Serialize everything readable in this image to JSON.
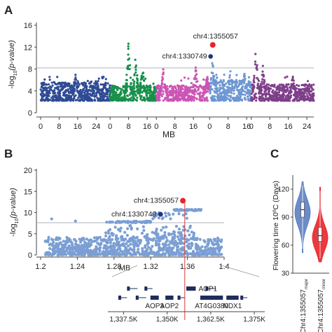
{
  "panels": {
    "a": {
      "letter": "A"
    },
    "b": {
      "letter": "B"
    },
    "c": {
      "letter": "C"
    }
  },
  "chart_data": [
    {
      "panel": "A",
      "type": "scatter",
      "subtype": "manhattan",
      "title": "",
      "xlabel": "MB",
      "ylabel_prefix": "-log",
      "ylabel_sub": "10",
      "ylabel_suffix": "(p-value)",
      "ylim": [
        0,
        16
      ],
      "yticks": [
        0,
        4,
        8,
        12,
        16
      ],
      "threshold": 8.2,
      "grid": false,
      "chromosomes": [
        {
          "color": "#2e4a94",
          "length": 30,
          "ticks": [
            0,
            8,
            16,
            24
          ],
          "base_max": 5.6,
          "peaks": [
            {
              "pos": 15,
              "height": 7.2
            },
            {
              "pos": 24,
              "height": 6.3
            }
          ]
        },
        {
          "color": "#17904a",
          "length": 20,
          "ticks": [
            0,
            8,
            16
          ],
          "base_max": 5.0,
          "peaks": [
            {
              "pos": 8,
              "height": 13.5
            },
            {
              "pos": 11,
              "height": 11.0
            },
            {
              "pos": 14,
              "height": 9.0
            }
          ]
        },
        {
          "color": "#cc55b4",
          "length": 23,
          "ticks": [
            0,
            8,
            16
          ],
          "base_max": 5.0,
          "peaks": [
            {
              "pos": 3,
              "height": 8.2
            },
            {
              "pos": 17,
              "height": 9.5
            },
            {
              "pos": 22,
              "height": 7.0
            }
          ]
        },
        {
          "color": "#6d97d2",
          "length": 18,
          "ticks": [
            0,
            8,
            16
          ],
          "base_max": 6.0,
          "peaks": [
            {
              "pos": 1.3,
              "height": 10.2
            },
            {
              "pos": 9,
              "height": 8.0
            },
            {
              "pos": 15,
              "height": 7.5
            }
          ]
        },
        {
          "color": "#7e3f8a",
          "length": 27,
          "ticks": [
            0,
            8,
            16,
            24
          ],
          "base_max": 5.2,
          "peaks": [
            {
              "pos": 2,
              "height": 12.5
            },
            {
              "pos": 5,
              "height": 9.0
            },
            {
              "pos": 18,
              "height": 7.0
            }
          ]
        }
      ],
      "highlights": [
        {
          "label": "chr4:1355057",
          "chrom": 4,
          "pos": 1.355057,
          "y": 12.4,
          "color": "#e8242a"
        },
        {
          "label": "chr4:1330749",
          "chrom": 4,
          "pos": 1.330749,
          "y": 10.3,
          "color": "#1f3578"
        }
      ]
    },
    {
      "panel": "B",
      "type": "scatter",
      "subtype": "regional",
      "title": "",
      "xlabel": "MB",
      "ylabel_prefix": "-log",
      "ylabel_sub": "10",
      "ylabel_suffix": "(p-value)",
      "xlim": [
        1.2,
        1.4
      ],
      "xticks": [
        "1.2",
        "1.24",
        "1.28",
        "1.32",
        "1.36",
        "1.4"
      ],
      "ylim": [
        0,
        20
      ],
      "yticks": [
        0,
        5,
        10,
        15,
        20
      ],
      "threshold": 7.6,
      "point_color": "#7b9fd4",
      "highlights": [
        {
          "label": "chr4:1355057",
          "x": 1.355057,
          "y": 12.8,
          "color": "#e8242a"
        },
        {
          "label": "chr4:1330749",
          "x": 1.330749,
          "y": 9.6,
          "color": "#1f3578"
        }
      ]
    },
    {
      "panel": "C",
      "type": "violin",
      "title": "",
      "ylabel": "Flowering time 10ºC (Days)",
      "ylim": [
        30,
        135
      ],
      "yticks": [
        30,
        60,
        90,
        120
      ],
      "series": [
        {
          "name": "Chr4:1355057",
          "subscript": "major",
          "color": "#5b7fc2",
          "median": 98,
          "q1": 90,
          "q3": 106,
          "min": 52,
          "max": 128,
          "mode": 95
        },
        {
          "name": "Chr4:1355057",
          "subscript": "minor",
          "color": "#e8242a",
          "median": 70,
          "q1": 64,
          "q3": 79,
          "min": 42,
          "max": 122,
          "mode": 68
        }
      ]
    }
  ],
  "gene_track": {
    "genes": [
      {
        "label": "AOP3",
        "start": 1345.2,
        "end": 1347.6
      },
      {
        "label": "AOP2",
        "start": 1349.5,
        "end": 1351.8
      },
      {
        "label": "AOP1",
        "start": 1355.5,
        "end": 1358.2
      },
      {
        "label": "AT4G0380",
        "start": 1359.5,
        "end": 1366.0
      },
      {
        "label": "NDX1",
        "start": 1367.0,
        "end": 1370.5
      }
    ],
    "axis_ticks": [
      "1,337.5K",
      "1,350K",
      "1,362.5K",
      "1,375K"
    ],
    "axis_range": [
      1333,
      1378
    ],
    "highlight_pos": 1355.057,
    "highlight_color": "#d83a3a"
  }
}
